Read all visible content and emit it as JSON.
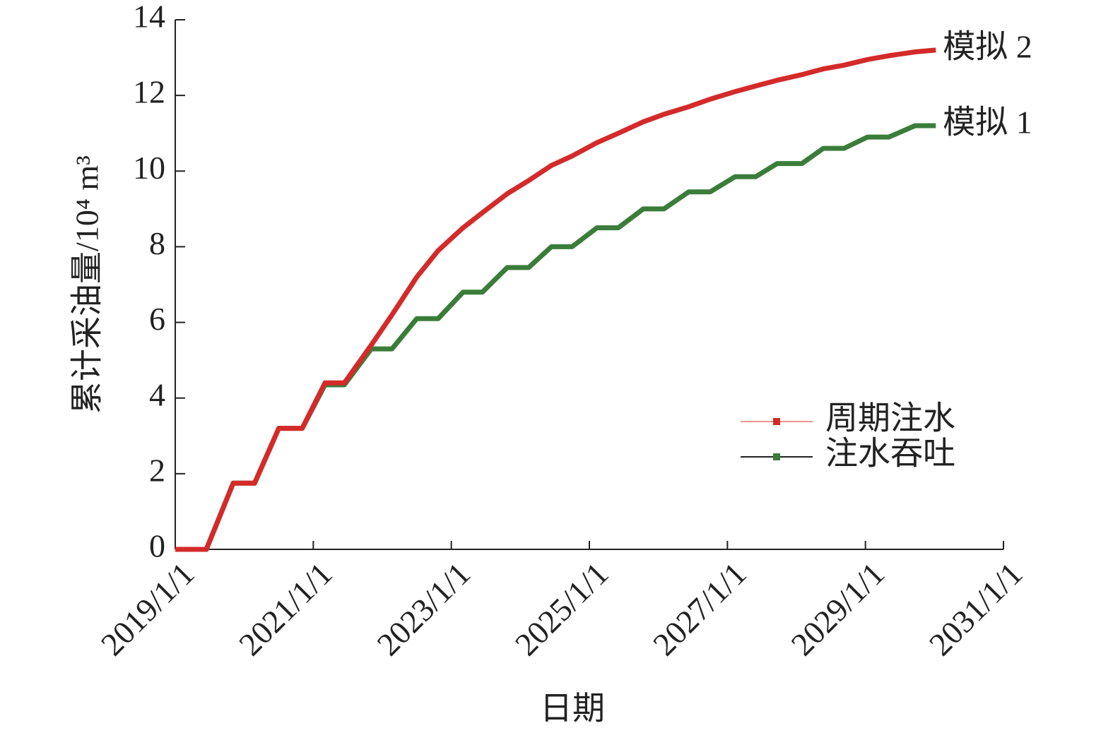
{
  "chart_data": {
    "type": "line",
    "x_label": "日期",
    "y_label": "累计采油量/10⁴ m³",
    "x": [
      2019,
      2019.45,
      2019.84,
      2020.15,
      2020.5,
      2020.84,
      2021.17,
      2021.45,
      2021.84,
      2022.14,
      2022.5,
      2022.81,
      2023.17,
      2023.45,
      2023.81,
      2024.12,
      2024.45,
      2024.75,
      2025.11,
      2025.42,
      2025.78,
      2026.08,
      2026.44,
      2026.75,
      2027.11,
      2027.41,
      2027.72,
      2028.08,
      2028.39,
      2028.69,
      2029.03,
      2029.34,
      2029.72,
      2030.02
    ],
    "series": [
      {
        "name": "周期注水",
        "color": "#d42a2a",
        "values": [
          0,
          0,
          1.75,
          1.75,
          3.2,
          3.2,
          4.4,
          4.4,
          5.4,
          6.2,
          7.2,
          7.9,
          8.5,
          8.9,
          9.4,
          9.75,
          10.15,
          10.4,
          10.75,
          11.0,
          11.3,
          11.5,
          11.7,
          11.9,
          12.1,
          12.25,
          12.4,
          12.55,
          12.7,
          12.8,
          12.95,
          13.05,
          13.15,
          13.2
        ]
      },
      {
        "name": "注水吞吐",
        "color": "#3a7d3a",
        "values": [
          0,
          0,
          1.75,
          1.75,
          3.2,
          3.2,
          4.35,
          4.35,
          5.3,
          5.3,
          6.1,
          6.1,
          6.8,
          6.8,
          7.45,
          7.45,
          8.0,
          8.0,
          8.5,
          8.5,
          9.0,
          9.0,
          9.45,
          9.45,
          9.85,
          9.85,
          10.2,
          10.2,
          10.6,
          10.6,
          10.9,
          10.9,
          11.2,
          11.2
        ]
      }
    ],
    "annotations": [
      "模拟 2",
      "模拟 1"
    ],
    "xlim": [
      2019,
      2031
    ],
    "xticks": [
      {
        "value": 2019,
        "label": "2019/1/1"
      },
      {
        "value": 2021,
        "label": "2021/1/1"
      },
      {
        "value": 2023,
        "label": "2023/1/1"
      },
      {
        "value": 2025,
        "label": "2025/1/1"
      },
      {
        "value": 2027,
        "label": "2027/1/1"
      },
      {
        "value": 2029,
        "label": "2029/1/1"
      },
      {
        "value": 2031,
        "label": "2031/1/1"
      }
    ],
    "ylim": [
      0,
      14
    ],
    "yticks": [
      0,
      2,
      4,
      6,
      8,
      10,
      12,
      14
    ],
    "legend": "right"
  }
}
